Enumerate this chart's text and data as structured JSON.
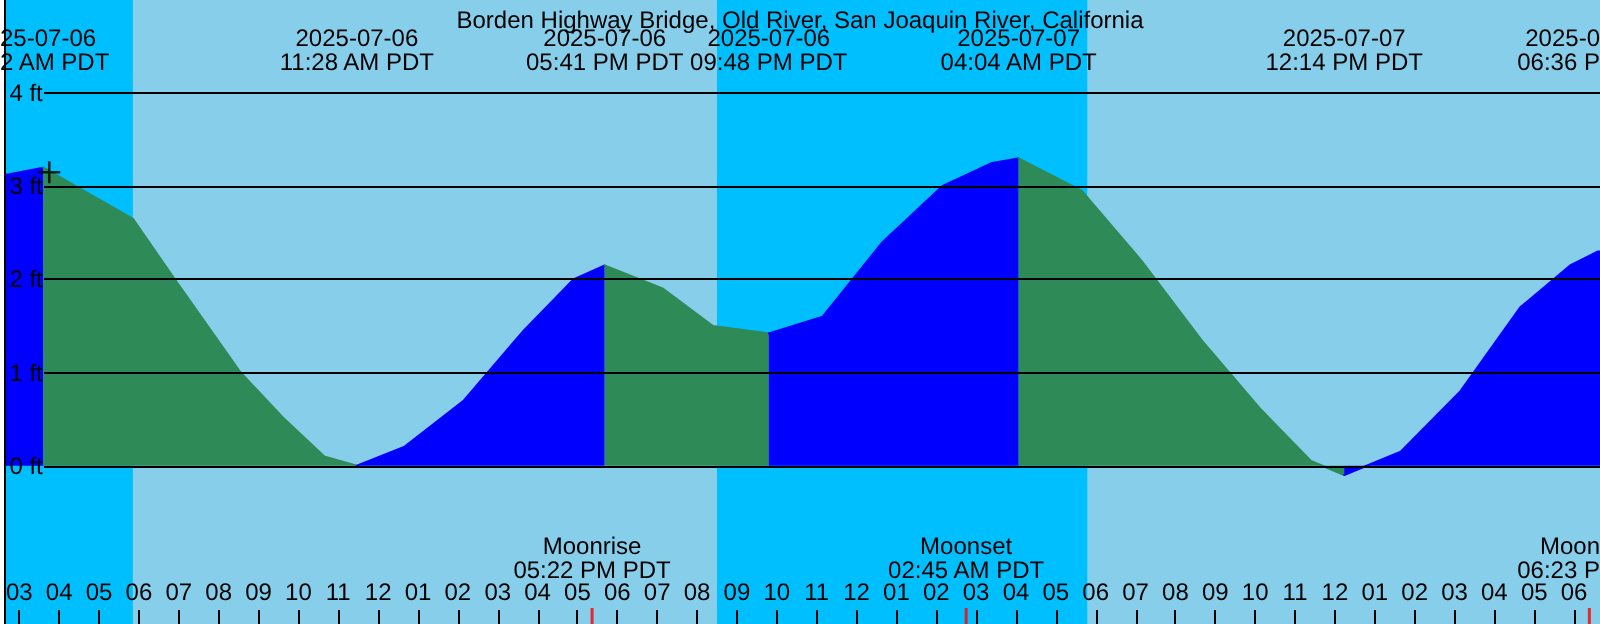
{
  "chart_data": {
    "type": "area",
    "title": "Borden Highway Bridge, Old River, San Joaquin River, California",
    "xlim": [
      "2025-07-06T02:39",
      "2025-07-07T18:39"
    ],
    "ylim": [
      -1.7,
      5
    ],
    "xticks": [
      {
        "value": "2025-07-06T03:00",
        "label": "03"
      },
      {
        "value": "2025-07-06T04:00",
        "label": "04"
      },
      {
        "value": "2025-07-06T05:00",
        "label": "05"
      },
      {
        "value": "2025-07-06T06:00",
        "label": "06"
      },
      {
        "value": "2025-07-06T07:00",
        "label": "07"
      },
      {
        "value": "2025-07-06T08:00",
        "label": "08"
      },
      {
        "value": "2025-07-06T09:00",
        "label": "09"
      },
      {
        "value": "2025-07-06T10:00",
        "label": "10"
      },
      {
        "value": "2025-07-06T11:00",
        "label": "11"
      },
      {
        "value": "2025-07-06T12:00",
        "label": "12"
      },
      {
        "value": "2025-07-06T13:00",
        "label": "01"
      },
      {
        "value": "2025-07-06T14:00",
        "label": "02"
      },
      {
        "value": "2025-07-06T15:00",
        "label": "03"
      },
      {
        "value": "2025-07-06T16:00",
        "label": "04"
      },
      {
        "value": "2025-07-06T17:00",
        "label": "05"
      },
      {
        "value": "2025-07-06T18:00",
        "label": "06"
      },
      {
        "value": "2025-07-06T19:00",
        "label": "07"
      },
      {
        "value": "2025-07-06T20:00",
        "label": "08"
      },
      {
        "value": "2025-07-06T21:00",
        "label": "09"
      },
      {
        "value": "2025-07-06T22:00",
        "label": "10"
      },
      {
        "value": "2025-07-06T23:00",
        "label": "11"
      },
      {
        "value": "2025-07-07T00:00",
        "label": "12"
      },
      {
        "value": "2025-07-07T01:00",
        "label": "01"
      },
      {
        "value": "2025-07-07T02:00",
        "label": "02"
      },
      {
        "value": "2025-07-07T03:00",
        "label": "03"
      },
      {
        "value": "2025-07-07T04:00",
        "label": "04"
      },
      {
        "value": "2025-07-07T05:00",
        "label": "05"
      },
      {
        "value": "2025-07-07T06:00",
        "label": "06"
      },
      {
        "value": "2025-07-07T07:00",
        "label": "07"
      },
      {
        "value": "2025-07-07T08:00",
        "label": "08"
      },
      {
        "value": "2025-07-07T09:00",
        "label": "09"
      },
      {
        "value": "2025-07-07T10:00",
        "label": "10"
      },
      {
        "value": "2025-07-07T11:00",
        "label": "11"
      },
      {
        "value": "2025-07-07T12:00",
        "label": "12"
      },
      {
        "value": "2025-07-07T13:00",
        "label": "01"
      },
      {
        "value": "2025-07-07T14:00",
        "label": "02"
      },
      {
        "value": "2025-07-07T15:00",
        "label": "03"
      },
      {
        "value": "2025-07-07T16:00",
        "label": "04"
      },
      {
        "value": "2025-07-07T17:00",
        "label": "05"
      },
      {
        "value": "2025-07-07T18:00",
        "label": "06"
      }
    ],
    "yticks": [
      {
        "value": 0,
        "label": "0 ft"
      },
      {
        "value": 1,
        "label": "1 ft"
      },
      {
        "value": 2,
        "label": "2 ft"
      },
      {
        "value": 3,
        "label": "3 ft"
      },
      {
        "value": 4,
        "label": "4 ft"
      }
    ],
    "grid": "y",
    "bands": [
      {
        "axis": "x",
        "from": "2025-07-06T02:39",
        "to": "2025-07-06T05:51",
        "color": "#00bfff"
      },
      {
        "axis": "x",
        "from": "2025-07-06T05:51",
        "to": "2025-07-06T20:30",
        "color": "#87ceeb"
      },
      {
        "axis": "x",
        "from": "2025-07-06T20:30",
        "to": "2025-07-07T05:48",
        "color": "#00bfff"
      },
      {
        "axis": "x",
        "from": "2025-07-07T05:48",
        "to": "2025-07-07T18:39",
        "color": "#87ceeb"
      }
    ],
    "ref_lines": [
      {
        "axis": "x",
        "value": "2025-07-06T17:22",
        "label": "Moonrise\n05:22 PM PDT",
        "color": "#ff0000"
      },
      {
        "axis": "x",
        "value": "2025-07-07T02:45",
        "label": "Moonset\n02:45 AM PDT",
        "color": "#ff0000"
      },
      {
        "axis": "x",
        "value": "2025-07-07T18:23",
        "label": "Moon\n06:23 P",
        "color": "#ff0000"
      }
    ],
    "series": [
      {
        "color": "#0000ff",
        "marker": "none",
        "x": [
          "2025-07-06T02:39",
          "2025-07-06T03:36"
        ],
        "values": [
          3.12,
          3.2
        ]
      },
      {
        "color": "#2e8b57",
        "marker": "none",
        "x": [
          "2025-07-06T03:36",
          "2025-07-06T05:51",
          "2025-07-06T06:54",
          "2025-07-06T08:33",
          "2025-07-06T09:39",
          "2025-07-06T10:39",
          "2025-07-06T11:28"
        ],
        "values": [
          3.2,
          2.65,
          2.0,
          1.0,
          0.5,
          0.1,
          0.0
        ]
      },
      {
        "color": "#0000ff",
        "marker": "none",
        "x": [
          "2025-07-06T11:28",
          "2025-07-06T12:39",
          "2025-07-06T14:09",
          "2025-07-06T15:39",
          "2025-07-06T16:54",
          "2025-07-06T17:41"
        ],
        "values": [
          0.0,
          0.2,
          0.7,
          1.45,
          2.0,
          2.15
        ]
      },
      {
        "color": "#2e8b57",
        "marker": "none",
        "x": [
          "2025-07-06T17:41",
          "2025-07-06T19:09",
          "2025-07-06T20:24",
          "2025-07-06T21:48"
        ],
        "values": [
          2.15,
          1.9,
          1.5,
          1.42
        ]
      },
      {
        "color": "#0000ff",
        "marker": "none",
        "x": [
          "2025-07-06T21:48",
          "2025-07-06T23:09",
          "2025-07-07T00:39",
          "2025-07-07T02:09",
          "2025-07-07T03:24",
          "2025-07-07T04:04"
        ],
        "values": [
          1.42,
          1.6,
          2.4,
          3.0,
          3.25,
          3.3
        ]
      },
      {
        "color": "#2e8b57",
        "marker": "none",
        "x": [
          "2025-07-07T04:04",
          "2025-07-07T05:39",
          "2025-07-07T07:09",
          "2025-07-07T08:39",
          "2025-07-07T10:09",
          "2025-07-07T11:24",
          "2025-07-07T12:14"
        ],
        "values": [
          3.3,
          2.95,
          2.2,
          1.35,
          0.6,
          0.05,
          -0.1
        ]
      },
      {
        "color": "#0000ff",
        "marker": "none",
        "x": [
          "2025-07-07T12:14",
          "2025-07-07T13:39",
          "2025-07-07T15:09",
          "2025-07-07T16:39",
          "2025-07-07T17:54",
          "2025-07-07T18:36",
          "2025-07-07T18:39"
        ],
        "values": [
          -0.1,
          0.15,
          0.8,
          1.7,
          2.15,
          2.3,
          2.3
        ]
      },
      {
        "type": "scatter",
        "color": "#000000",
        "marker": "cross",
        "x": [
          "2025-07-06T03:45"
        ],
        "values": [
          3.15
        ]
      }
    ],
    "annotations": [
      "25-07-06\n2 AM PDT",
      "2025-07-06\n11:28 AM PDT",
      "2025-07-06\n05:41 PM PDT",
      "2025-07-06\n09:48 PM PDT",
      "2025-07-07\n04:04 AM PDT",
      "2025-07-07\n12:14 PM PDT",
      "2025-0\n06:36 P"
    ]
  }
}
